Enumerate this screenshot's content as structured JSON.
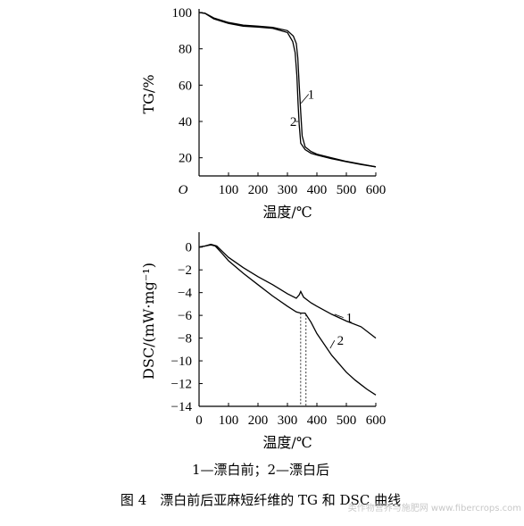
{
  "chart_data": [
    {
      "type": "line",
      "ylabel": "TG/%",
      "xlabel": "温度/℃",
      "xlim": [
        0,
        600
      ],
      "ylim": [
        10,
        100
      ],
      "x_ticks": [
        "O",
        "100",
        "200",
        "300",
        "400",
        "500",
        "600"
      ],
      "y_ticks": [
        "20",
        "40",
        "60",
        "80",
        "100"
      ],
      "series": [
        {
          "name": "1",
          "points": [
            [
              0,
              100
            ],
            [
              20,
              99.6
            ],
            [
              50,
              97
            ],
            [
              100,
              94.5
            ],
            [
              150,
              93
            ],
            [
              200,
              92.5
            ],
            [
              250,
              91.8
            ],
            [
              300,
              90
            ],
            [
              320,
              87
            ],
            [
              330,
              83
            ],
            [
              335,
              75
            ],
            [
              340,
              60
            ],
            [
              345,
              45
            ],
            [
              350,
              32
            ],
            [
              360,
              26
            ],
            [
              380,
              23.5
            ],
            [
              400,
              22
            ],
            [
              450,
              20
            ],
            [
              500,
              18
            ],
            [
              550,
              16.5
            ],
            [
              600,
              15
            ]
          ]
        },
        {
          "name": "2",
          "points": [
            [
              0,
              100
            ],
            [
              20,
              99.5
            ],
            [
              50,
              96.5
            ],
            [
              100,
              94
            ],
            [
              150,
              92.5
            ],
            [
              200,
              92
            ],
            [
              250,
              91.3
            ],
            [
              300,
              89
            ],
            [
              318,
              84
            ],
            [
              326,
              78
            ],
            [
              332,
              65
            ],
            [
              336,
              50
            ],
            [
              340,
              38
            ],
            [
              345,
              28
            ],
            [
              360,
              24.5
            ],
            [
              380,
              22.5
            ],
            [
              400,
              21.5
            ],
            [
              450,
              19.5
            ],
            [
              500,
              17.8
            ],
            [
              550,
              16.3
            ],
            [
              600,
              15
            ]
          ]
        }
      ],
      "curve_labels": [
        "1",
        "2"
      ]
    },
    {
      "type": "line",
      "ylabel": "DSC/(mW·mg⁻¹)",
      "xlabel": "温度/℃",
      "xlim": [
        0,
        600
      ],
      "ylim": [
        -14,
        1
      ],
      "x_ticks": [
        "0",
        "100",
        "200",
        "300",
        "400",
        "500",
        "600"
      ],
      "y_ticks": [
        "0",
        "-2",
        "-4",
        "-6",
        "-8",
        "-10",
        "-12",
        "-14"
      ],
      "series": [
        {
          "name": "1",
          "points": [
            [
              0,
              0
            ],
            [
              20,
              0.1
            ],
            [
              40,
              0.2
            ],
            [
              55,
              0.1
            ],
            [
              80,
              -0.6
            ],
            [
              100,
              -1.2
            ],
            [
              150,
              -2.3
            ],
            [
              200,
              -3.3
            ],
            [
              250,
              -4.3
            ],
            [
              300,
              -5.2
            ],
            [
              330,
              -5.7
            ],
            [
              345,
              -5.8
            ],
            [
              360,
              -5.8
            ],
            [
              380,
              -6.6
            ],
            [
              400,
              -7.6
            ],
            [
              450,
              -9.5
            ],
            [
              500,
              -11
            ],
            [
              530,
              -11.7
            ],
            [
              550,
              -12.1
            ],
            [
              570,
              -12.5
            ],
            [
              600,
              -13
            ]
          ]
        },
        {
          "name": "2",
          "points": [
            [
              0,
              0
            ],
            [
              20,
              0.1
            ],
            [
              40,
              0.25
            ],
            [
              60,
              0.1
            ],
            [
              80,
              -0.4
            ],
            [
              100,
              -0.9
            ],
            [
              150,
              -1.8
            ],
            [
              200,
              -2.6
            ],
            [
              250,
              -3.3
            ],
            [
              300,
              -4.1
            ],
            [
              330,
              -4.5
            ],
            [
              340,
              -4.2
            ],
            [
              345,
              -3.9
            ],
            [
              355,
              -4.4
            ],
            [
              380,
              -4.9
            ],
            [
              400,
              -5.2
            ],
            [
              450,
              -5.9
            ],
            [
              500,
              -6.5
            ],
            [
              550,
              -7.0
            ],
            [
              600,
              -8.0
            ]
          ]
        }
      ],
      "marker_x": [
        345,
        363
      ],
      "curve_labels": [
        "1",
        "2"
      ]
    }
  ],
  "legend_caption": "1—漂白前；2—漂白后",
  "figure_caption": "图 4　漂白前后亚麻短纤维的 TG 和 DSC 曲线",
  "watermark": "类作物营养与施肥网 www.fibercrops.com"
}
